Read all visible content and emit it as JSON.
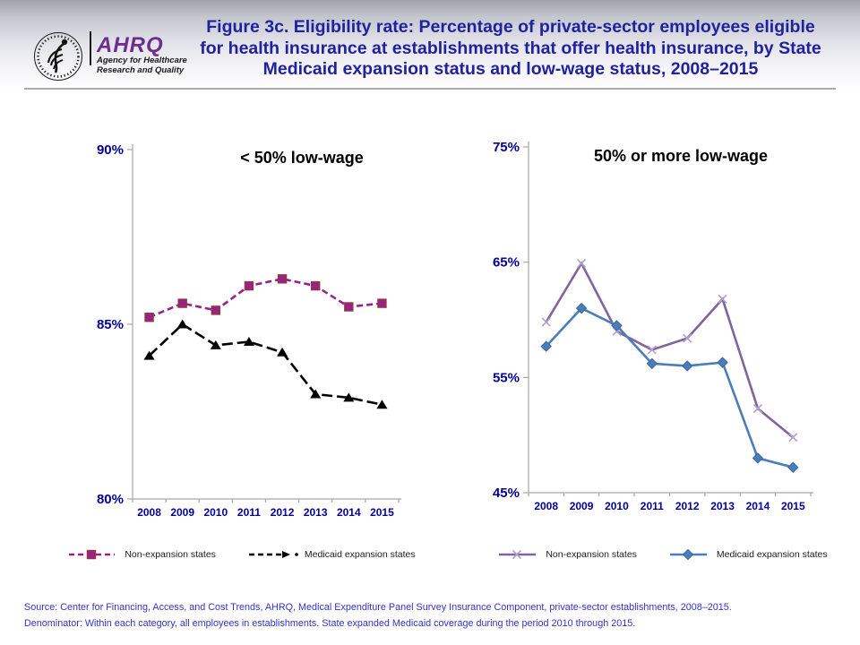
{
  "header": {
    "logo": {
      "hhs_seal": "hhs-eagle-seal",
      "ahrq": "AHRQ",
      "sub1": "Agency for Healthcare",
      "sub2": "Research and Quality"
    },
    "title_line1": "Figure 3c. Eligibility rate: Percentage of private-sector employees eligible",
    "title_line2": "for health insurance at establishments that offer health insurance, by State",
    "title_line3": "Medicaid expansion status and low-wage status, 2008–2015"
  },
  "footer": {
    "source": "Source: Center for Financing, Access, and Cost Trends, AHRQ, Medical Expenditure Panel Survey Insurance Component, private-sector establishments, 2008–2015.",
    "denominator": "Denominator: Within each category, all employees in establishments. State expanded Medicaid coverage during the period 2010 through 2015."
  },
  "colors": {
    "title_blue": "#21219f",
    "tick_blue": "#00009b",
    "footer_blue": "#3232cc",
    "axis_gray": "#a6a6a6",
    "left_nonexpansion_purple": "#97218d",
    "left_marker_border_red": "#953735",
    "left_expansion_black": "#000000",
    "right_nonexpansion_purple": "#8064a2",
    "right_x_marker_purple": "#b1a0c7",
    "right_expansion_blue": "#4a7ebb"
  },
  "chart_data": [
    {
      "type": "line",
      "title": "< 50% low-wage",
      "categories": [
        "2008",
        "2009",
        "2010",
        "2011",
        "2012",
        "2013",
        "2014",
        "2015"
      ],
      "series": [
        {
          "name": "Non-expansion states",
          "values": [
            85.2,
            85.6,
            85.4,
            86.1,
            86.3,
            86.1,
            85.5,
            85.6
          ],
          "color": "#97218d",
          "dash": "7 4",
          "marker": "square",
          "marker_border": "#953735"
        },
        {
          "name": "Medicaid expansion states",
          "values": [
            84.1,
            85.0,
            84.4,
            84.5,
            84.2,
            83.0,
            82.9,
            82.7
          ],
          "color": "#000000",
          "dash": "12 5",
          "marker": "triangle",
          "legend_arrow": true
        }
      ],
      "ylim": [
        80,
        90
      ],
      "yticks": [
        80,
        85,
        90
      ],
      "ytick_labels": [
        "80%",
        "85%",
        "90%"
      ],
      "xlabel": "",
      "ylabel": "",
      "grid": false,
      "legend_position": "bottom"
    },
    {
      "type": "line",
      "title": "50% or more low-wage",
      "categories": [
        "2008",
        "2009",
        "2010",
        "2011",
        "2012",
        "2013",
        "2014",
        "2015"
      ],
      "series": [
        {
          "name": "Non-expansion states",
          "values": [
            59.8,
            64.9,
            59.0,
            57.4,
            58.4,
            61.8,
            52.3,
            49.8
          ],
          "color": "#8064a2",
          "marker": "x",
          "marker_color": "#b1a0c7"
        },
        {
          "name": "Medicaid expansion states",
          "values": [
            57.7,
            61.0,
            59.5,
            56.2,
            56.0,
            56.3,
            48.0,
            47.2
          ],
          "color": "#4a7ebb",
          "marker": "diamond",
          "marker_border": "#3a66a0"
        }
      ],
      "ylim": [
        45,
        75
      ],
      "yticks": [
        45,
        55,
        65,
        75
      ],
      "ytick_labels": [
        "45%",
        "55%",
        "65%",
        "75%"
      ],
      "xlabel": "",
      "ylabel": "",
      "grid": false,
      "legend_position": "bottom"
    }
  ]
}
